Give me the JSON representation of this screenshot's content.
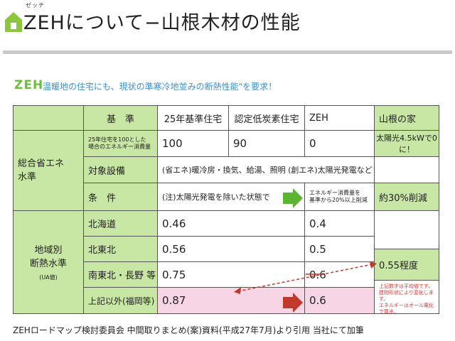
{
  "header": {
    "ruby": "ゼッチ",
    "title": "ZEHについて−山根木材の性能"
  },
  "intro": {
    "logo": "ZEH",
    "text": "温暖地の住宅にも、現状の準寒冷地並みの断熱性能\"を要求！"
  },
  "table": {
    "col_headers": {
      "kijun": "基　準",
      "h25": "25年基準住宅",
      "nintei": "認定低炭素住宅",
      "zeh": "ZEH",
      "yamane": "山根の家"
    },
    "energy": {
      "group_label": "総合省エネ\n水準",
      "row1_label": "25年住宅を100とした\n場合のエネルギー消費量",
      "h25": "100",
      "nintei": "90",
      "zeh": "0",
      "yamane": "太陽光4.5kWで0に！",
      "row2_label": "対象設備",
      "row2_value": "(省エネ)暖冷房・換気、給湯、照明 (創エネ)太陽光発電など",
      "row3_label": "条　件",
      "row3_value": "(注)太陽光発電を除いた状態で",
      "row3_zeh": "エネルギー消費量を\n基準から20%以上削減",
      "row3_yamane": "約30%削減"
    },
    "insulation": {
      "group_label": "地域別\n断熱水準",
      "group_sub": "(UA値)",
      "rows": [
        {
          "region": "北海道",
          "h25": "0.46",
          "zeh": "0.4"
        },
        {
          "region": "北東北",
          "h25": "0.56",
          "zeh": "0.5"
        },
        {
          "region": "南東北・長野 等",
          "h25": "0.75",
          "zeh": "0.6"
        },
        {
          "region": "上記以外(福岡等)",
          "h25": "0.87",
          "zeh": "0.6"
        }
      ],
      "yamane_value": "0.55程度",
      "yamane_note": "上記数字は平均値です。\n建物形状により変化します。\nエネルギーはオール電化で算出。"
    }
  },
  "footer": "ZEHロードマップ検討委員会 中間取りまとめ(案)資料(平成27年7月)より引用 当社にて加筆",
  "colors": {
    "green_cell": "#c8e6a4",
    "pink_cell": "#f7d5e5",
    "arrow_green": "#5cb531",
    "arrow_red": "#c0392b",
    "subtitle_blue": "#3d8fd4"
  }
}
